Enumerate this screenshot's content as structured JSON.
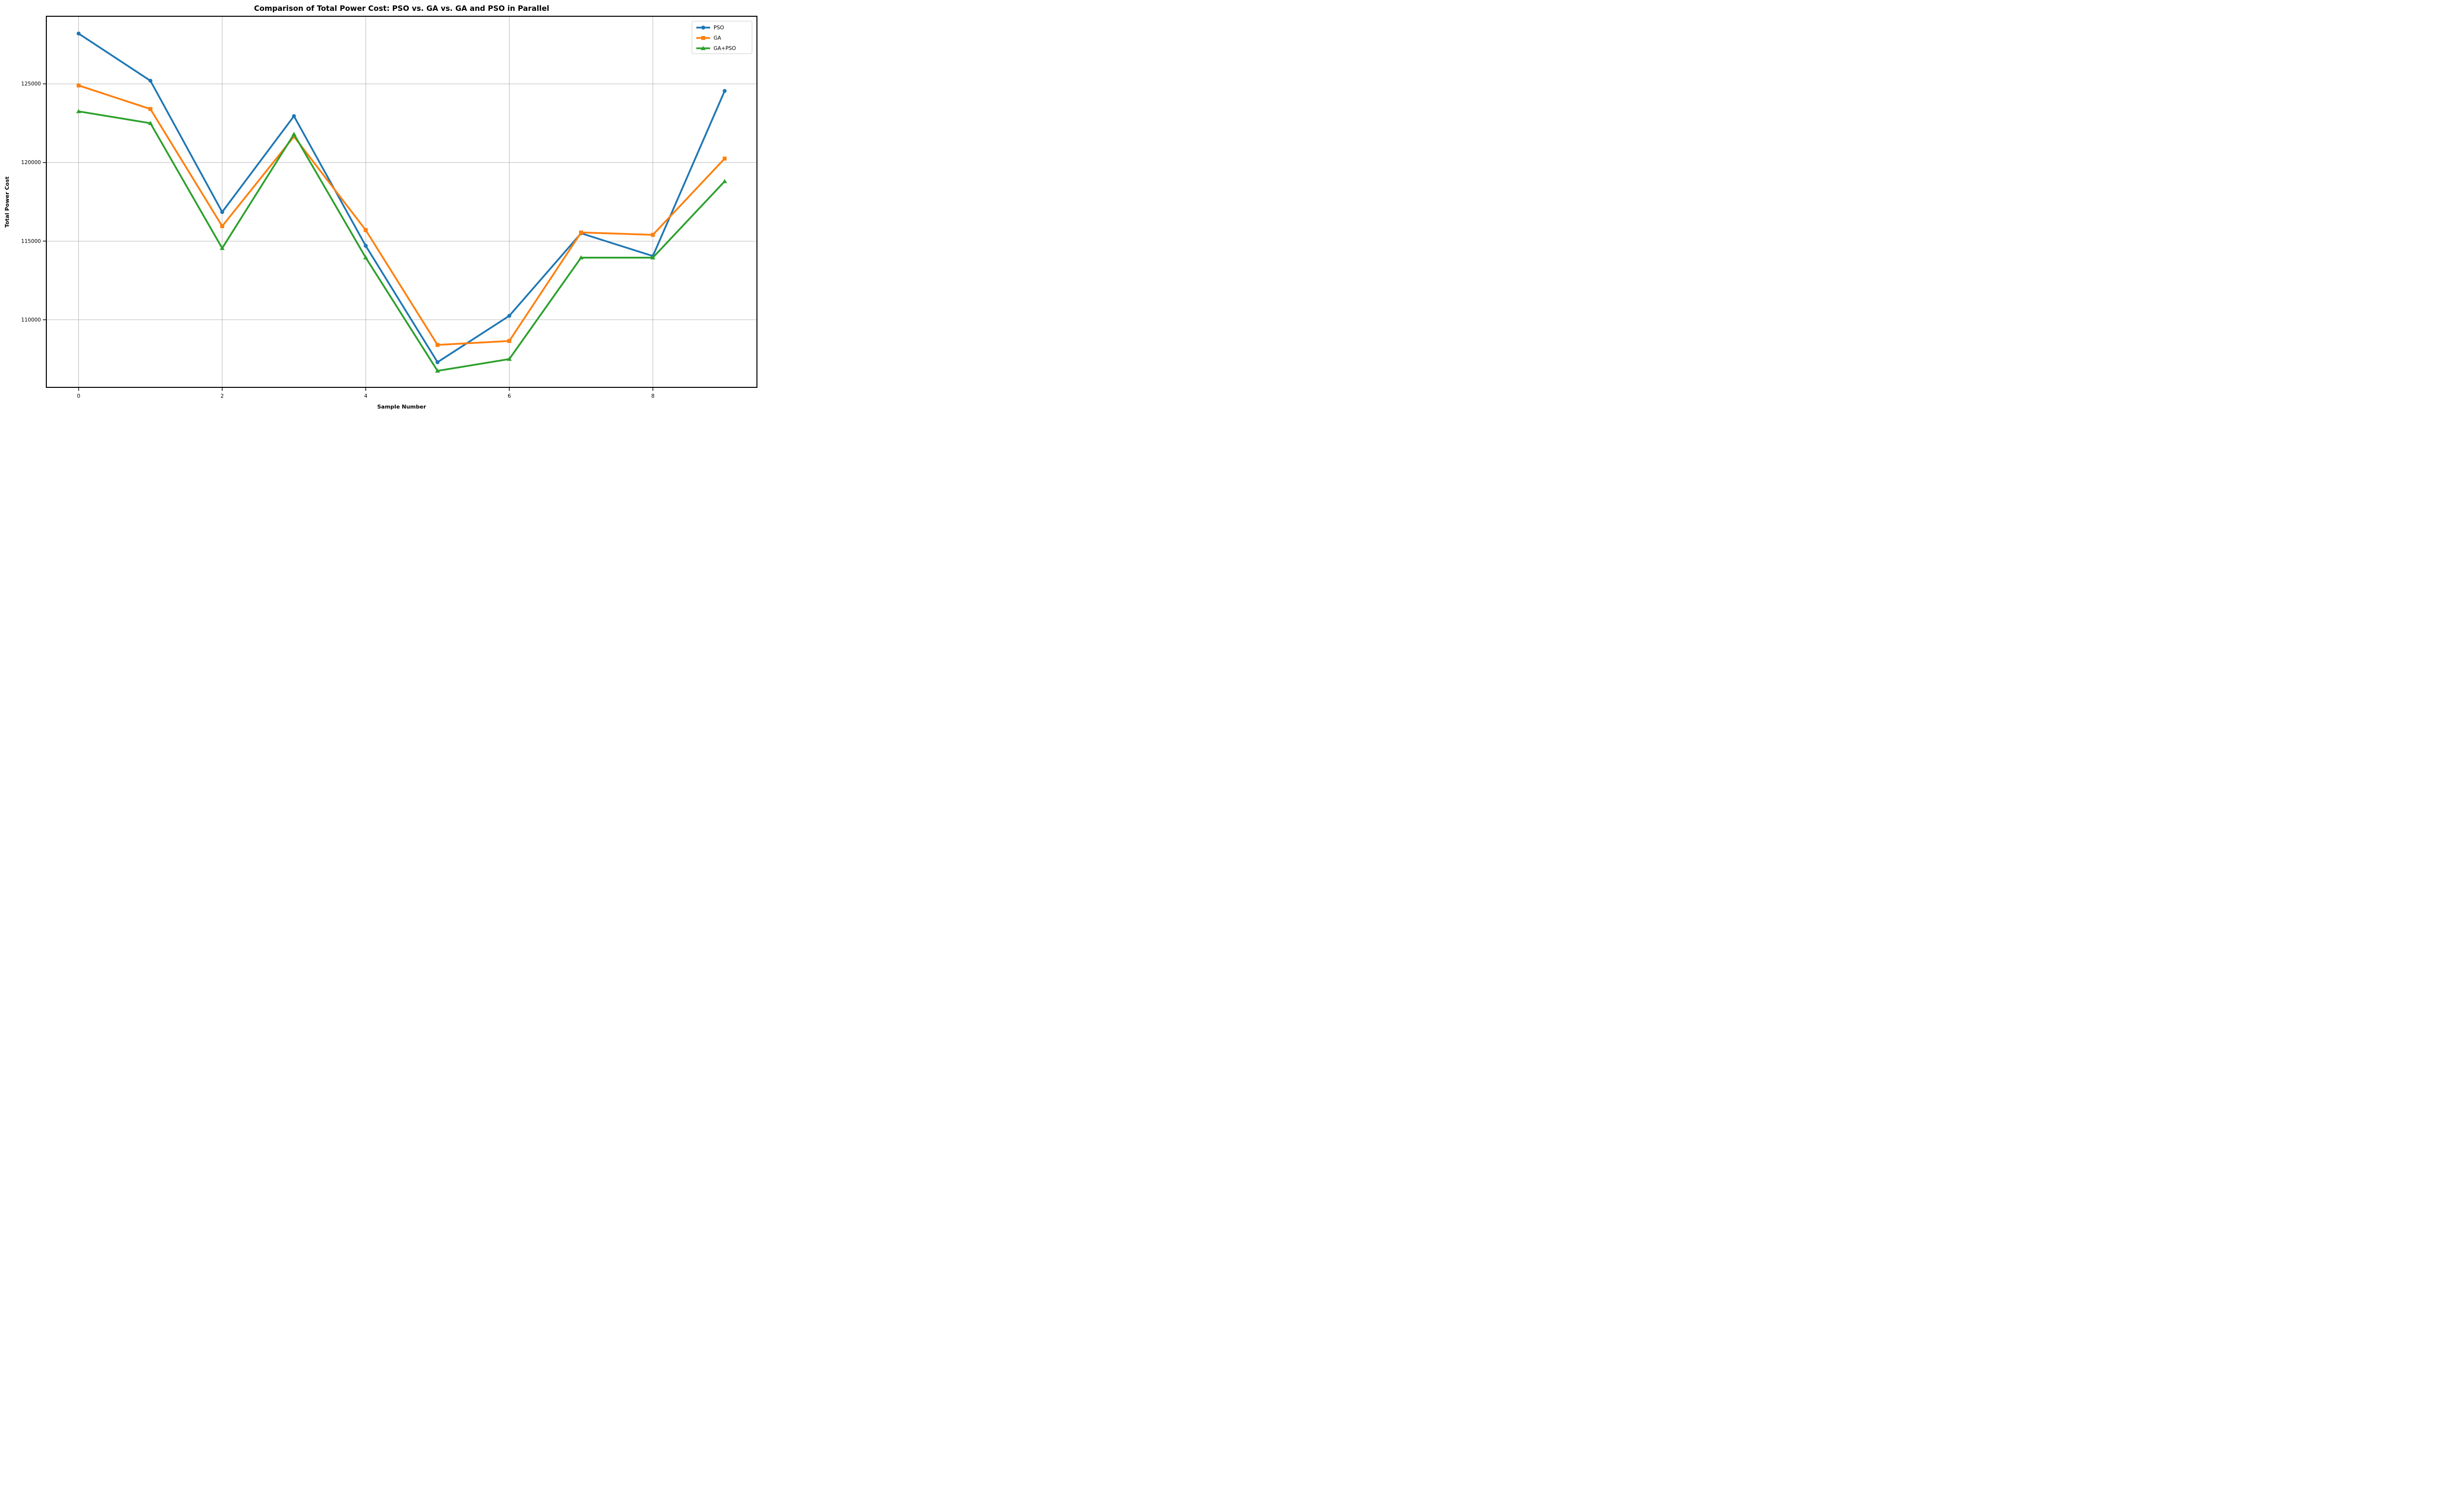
{
  "chart_data": {
    "type": "line",
    "title": "Comparison of Total Power Cost: PSO vs. GA vs. GA and PSO in Parallel",
    "xlabel": "Sample Number",
    "ylabel": "Total Power Cost",
    "x": [
      0,
      1,
      2,
      3,
      4,
      5,
      6,
      7,
      8,
      9
    ],
    "series": [
      {
        "name": "PSO",
        "color": "#1f77b4",
        "marker": "circle",
        "values": [
          128200,
          125200,
          116850,
          122950,
          114700,
          107300,
          110250,
          115500,
          114050,
          124550
        ]
      },
      {
        "name": "GA",
        "color": "#ff7f0e",
        "marker": "square",
        "values": [
          124900,
          123400,
          115950,
          121650,
          115700,
          108400,
          108650,
          115550,
          115400,
          120250
        ]
      },
      {
        "name": "GA+PSO",
        "color": "#2ca02c",
        "marker": "triangle",
        "values": [
          123250,
          122500,
          114550,
          121800,
          113950,
          106750,
          107500,
          113950,
          113950,
          118800
        ]
      }
    ],
    "xlim": [
      -0.45,
      9.45
    ],
    "ylim": [
      105700,
      129300
    ],
    "xticks": [
      0,
      2,
      4,
      6,
      8
    ],
    "yticks": [
      110000,
      115000,
      120000,
      125000
    ],
    "grid": true,
    "grid_color": "#b0b0b0",
    "spine_color": "#000000",
    "background": "#ffffff",
    "legend_position": "upper right"
  }
}
